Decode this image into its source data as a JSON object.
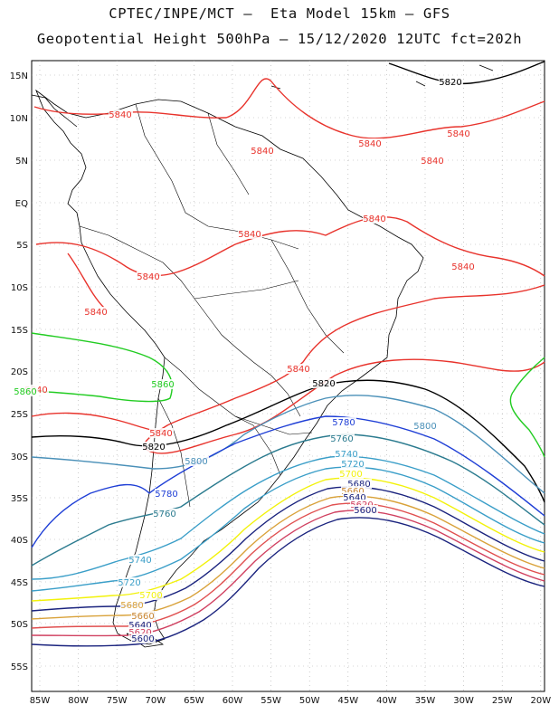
{
  "header": {
    "line1": "CPTEC/INPE/MCT –  Eta Model 15km – GFS",
    "line2": "Geopotential Height 500hPa – 15/12/2020 12UTC fct=202h"
  },
  "axes": {
    "lat_labels": [
      "15N",
      "10N",
      "5N",
      "EQ",
      "5S",
      "10S",
      "15S",
      "20S",
      "25S",
      "30S",
      "35S",
      "40S",
      "45S",
      "50S",
      "55S"
    ],
    "lon_labels": [
      "85W",
      "80W",
      "75W",
      "70W",
      "65W",
      "60W",
      "55W",
      "50W",
      "45W",
      "40W",
      "35W",
      "30W",
      "25W",
      "20W"
    ]
  },
  "colors": {
    "c5840": "#e8332c",
    "c5820": "#000000",
    "c5800": "#4a90b8",
    "c5780": "#1f3fd6",
    "c5760": "#2b7b8f",
    "c5740": "#3a9ec8",
    "c5720": "#3a9ec8",
    "c5700": "#f2f20a",
    "c5680": "#d9a23a",
    "c5660": "#c98632",
    "c5640": "#e05050",
    "c5620": "#d04060",
    "c5600": "#1a237e",
    "c5860": "#22cc22"
  },
  "contour_labels": [
    {
      "text": "5840",
      "color": "c5840"
    },
    {
      "text": "5840",
      "color": "c5840"
    },
    {
      "text": "5840",
      "color": "c5840"
    },
    {
      "text": "5840",
      "color": "c5840"
    },
    {
      "text": "5840",
      "color": "c5840"
    },
    {
      "text": "5840",
      "color": "c5840"
    },
    {
      "text": "5840",
      "color": "c5840"
    },
    {
      "text": "5840",
      "color": "c5840"
    },
    {
      "text": "5840",
      "color": "c5840"
    },
    {
      "text": "5840",
      "color": "c5840"
    },
    {
      "text": "5840",
      "color": "c5840"
    },
    {
      "text": "5840",
      "color": "c5840"
    },
    {
      "text": "5840",
      "color": "c5840"
    },
    {
      "text": "5820",
      "color": "c5820"
    },
    {
      "text": "5820",
      "color": "c5820"
    },
    {
      "text": "5820",
      "color": "c5820"
    },
    {
      "text": "5860",
      "color": "c5860"
    },
    {
      "text": "5860",
      "color": "c5860"
    },
    {
      "text": "5800",
      "color": "c5800"
    },
    {
      "text": "5800",
      "color": "c5800"
    },
    {
      "text": "5780",
      "color": "c5780"
    },
    {
      "text": "5780",
      "color": "c5780"
    },
    {
      "text": "5760",
      "color": "c5760"
    },
    {
      "text": "5760",
      "color": "c5760"
    },
    {
      "text": "5740",
      "color": "c5740"
    },
    {
      "text": "5740",
      "color": "c5740"
    },
    {
      "text": "5720",
      "color": "c5720"
    },
    {
      "text": "5720",
      "color": "c5720"
    },
    {
      "text": "5700",
      "color": "c5700"
    },
    {
      "text": "5700",
      "color": "c5700"
    },
    {
      "text": "5680",
      "color": "c5600"
    },
    {
      "text": "5680",
      "color": "c5680"
    },
    {
      "text": "5660",
      "color": "c5660"
    },
    {
      "text": "5660",
      "color": "c5660"
    },
    {
      "text": "5640",
      "color": "c5600"
    },
    {
      "text": "5640",
      "color": "c5600"
    },
    {
      "text": "5620",
      "color": "c5620"
    },
    {
      "text": "5620",
      "color": "c5620"
    },
    {
      "text": "5600",
      "color": "c5600"
    },
    {
      "text": "5600",
      "color": "c5600"
    }
  ]
}
